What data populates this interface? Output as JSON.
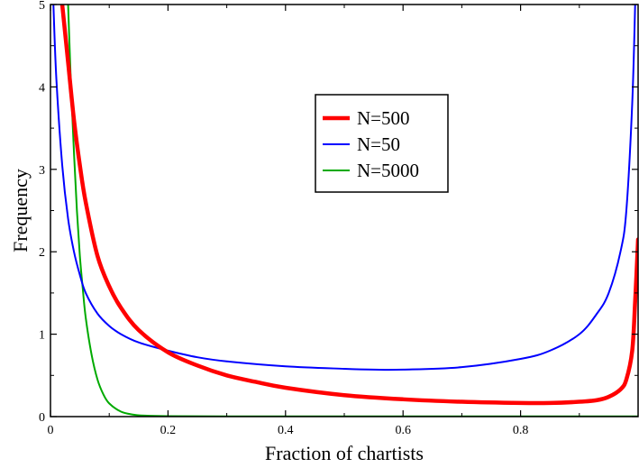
{
  "chart_data": {
    "type": "line",
    "title": "",
    "xlabel": "Fraction of chartists",
    "ylabel": "Frequency",
    "xlim": [
      0,
      1
    ],
    "ylim": [
      0,
      5
    ],
    "x_ticks": [
      "0",
      "0.2",
      "0.4",
      "0.6",
      "0.8"
    ],
    "y_ticks": [
      "0",
      "1",
      "2",
      "3",
      "4",
      "5"
    ],
    "grid": false,
    "legend_position": "upper-center",
    "series": [
      {
        "name": "N=500",
        "color": "#ff0000",
        "line_width": "thick",
        "x": [
          0.02,
          0.03,
          0.04,
          0.05,
          0.06,
          0.08,
          0.1,
          0.12,
          0.15,
          0.2,
          0.25,
          0.3,
          0.35,
          0.4,
          0.5,
          0.6,
          0.7,
          0.8,
          0.85,
          0.9,
          0.93,
          0.95,
          0.97,
          0.98,
          0.99,
          0.995,
          1.0
        ],
        "y": [
          5.0,
          4.3,
          3.6,
          3.05,
          2.6,
          1.95,
          1.58,
          1.32,
          1.05,
          0.78,
          0.62,
          0.5,
          0.42,
          0.35,
          0.26,
          0.21,
          0.18,
          0.165,
          0.165,
          0.18,
          0.2,
          0.24,
          0.33,
          0.45,
          0.8,
          1.4,
          2.15
        ]
      },
      {
        "name": "N=50",
        "color": "#0000ff",
        "line_width": "normal",
        "x": [
          0.005,
          0.01,
          0.02,
          0.03,
          0.04,
          0.05,
          0.06,
          0.08,
          0.1,
          0.12,
          0.15,
          0.2,
          0.25,
          0.3,
          0.4,
          0.5,
          0.55,
          0.6,
          0.7,
          0.8,
          0.85,
          0.9,
          0.93,
          0.95,
          0.97,
          0.98,
          0.99,
          0.995
        ],
        "y": [
          5.0,
          4.1,
          3.05,
          2.4,
          2.0,
          1.72,
          1.5,
          1.25,
          1.1,
          1.0,
          0.9,
          0.8,
          0.72,
          0.67,
          0.61,
          0.58,
          0.57,
          0.57,
          0.6,
          0.7,
          0.8,
          1.0,
          1.25,
          1.5,
          2.0,
          2.5,
          3.8,
          5.0
        ]
      },
      {
        "name": "N=5000",
        "color": "#00aa00",
        "line_width": "normal",
        "x": [
          0.03,
          0.035,
          0.04,
          0.045,
          0.05,
          0.055,
          0.06,
          0.07,
          0.08,
          0.09,
          0.1,
          0.12,
          0.14,
          0.16,
          0.2,
          0.3,
          0.5,
          0.7,
          0.9,
          1.0
        ],
        "y": [
          5.0,
          4.0,
          3.2,
          2.5,
          1.95,
          1.55,
          1.2,
          0.75,
          0.45,
          0.27,
          0.16,
          0.06,
          0.025,
          0.012,
          0.005,
          0.003,
          0.003,
          0.003,
          0.003,
          0.003
        ]
      }
    ]
  }
}
